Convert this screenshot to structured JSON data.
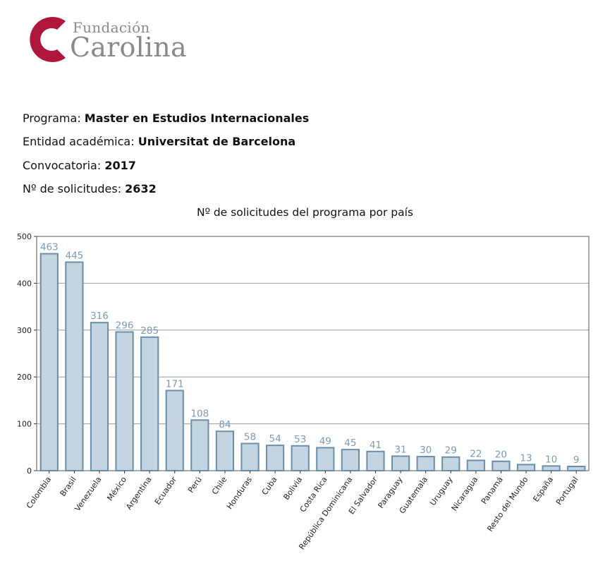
{
  "brand": {
    "name_top": "Fundación",
    "name_main": "Carolina",
    "colors": {
      "logo_red": "#b0153c",
      "logo_gray": "#8a8a8a"
    }
  },
  "info": {
    "programa_label": "Programa:",
    "programa_value": "Master en Estudios Internacionales",
    "entidad_label": "Entidad académica:",
    "entidad_value": "Universitat de Barcelona",
    "convocatoria_label": "Convocatoria:",
    "convocatoria_value": "2017",
    "solicitudes_label": "Nº de solicitudes:",
    "solicitudes_value": "2632"
  },
  "chart_data": {
    "type": "bar",
    "title": "Nº de solicitudes del programa por país",
    "categories": [
      "Colombia",
      "Brasil",
      "Venezuela",
      "México",
      "Argentina",
      "Ecuador",
      "Perú",
      "Chile",
      "Honduras",
      "Cuba",
      "Bolivia",
      "Costa Rica",
      "República Dominicana",
      "El Salvador",
      "Paraguay",
      "Guatemala",
      "Uruguay",
      "Nicaragua",
      "Panamá",
      "Resto del Mundo",
      "España",
      "Portugal"
    ],
    "values": [
      463,
      445,
      316,
      296,
      285,
      171,
      108,
      84,
      58,
      54,
      53,
      49,
      45,
      41,
      31,
      30,
      29,
      22,
      20,
      13,
      10,
      9
    ],
    "ylim": [
      0,
      500
    ],
    "yticks": [
      0,
      100,
      200,
      300,
      400,
      500
    ],
    "grid": true,
    "xlabel": "",
    "ylabel": "",
    "colors": {
      "bar_fill": "#c3d5e1",
      "bar_stroke": "#6a8eab",
      "label": "#7b9bb5",
      "grid": "#9a9a9a"
    }
  }
}
